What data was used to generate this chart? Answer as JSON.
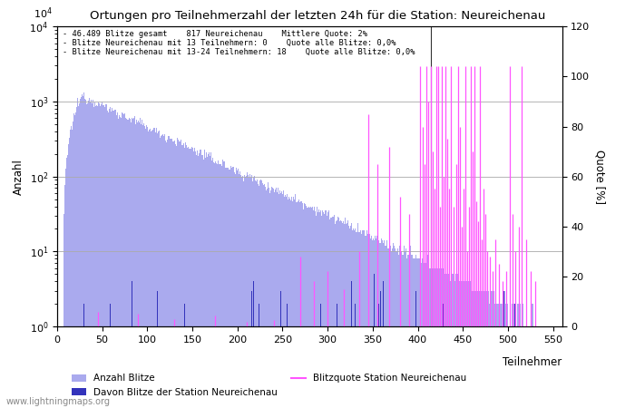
{
  "title": "Ortungen pro Teilnehmerzahl der letzten 24h für die Station: Neureichenau",
  "subtitle_lines": [
    "46.489 Blitze gesamt    817 Neureichenau    Mittlere Quote: 2%",
    "Blitze Neureichenau mit 13 Teilnehmern: 0    Quote alle Blitze: 0,0%",
    "Blitze Neureichenau mit 13-24 Teilnehmern: 18    Quote alle Blitze: 0,0%"
  ],
  "xlabel": "Teilnehmer",
  "ylabel_left": "Anzahl",
  "ylabel_right": "Quote [%]",
  "xlim": [
    0,
    560
  ],
  "ylim_right": [
    0,
    120
  ],
  "yticks_right": [
    0,
    20,
    40,
    60,
    80,
    100,
    120
  ],
  "bar_color_light": "#aaaaee",
  "bar_color_dark": "#3333bb",
  "line_color": "#ff55ff",
  "dark_line_color": "#333333",
  "grid_color": "#aaaaaa",
  "watermark": "www.lightningmaps.org",
  "legend_entries": [
    "Anzahl Blitze",
    "Davon Blitze der Station Neureichenau",
    "Blitzquote Station Neureichenau"
  ]
}
